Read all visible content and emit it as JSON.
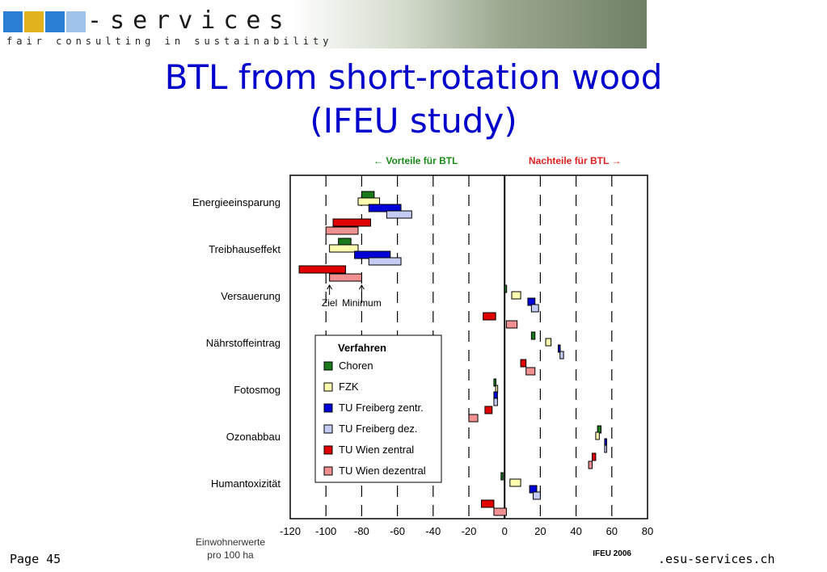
{
  "header": {
    "logo_text": "-services",
    "logo_tagline": "fair consulting in sustainability",
    "logo_colors": [
      "#2a7fd4",
      "#e2b21c",
      "#2a7fd4",
      "#9fc3e8"
    ]
  },
  "slide": {
    "title_line1": "BTL from short-rotation wood",
    "title_line2": "(IFEU study)"
  },
  "footer": {
    "page_label": "Page 45",
    "site": ".esu-services.ch"
  },
  "chart_data": {
    "type": "bar",
    "orientation": "horizontal-floating",
    "top_left_label": "←  Vorteile für BTL",
    "top_right_label": "Nachteile für BTL  →",
    "top_left_color": "#1a8a1a",
    "top_right_color": "#e02020",
    "xlabel": "Einwohnerwerte pro 100 ha",
    "xlabel_line1": "Einwohnerwerte",
    "xlabel_line2": "pro 100 ha",
    "source": "IFEU 2006",
    "xlim": [
      -120,
      80
    ],
    "xticks": [
      -120,
      -100,
      -80,
      -60,
      -40,
      -20,
      0,
      20,
      40,
      60,
      80
    ],
    "grid": "dashed vertical",
    "categories": [
      "Energieeinsparung",
      "Treibhauseffekt",
      "Versauerung",
      "Nährstoffeintrag",
      "Fotosmog",
      "Ozonabbau",
      "Humantoxizität"
    ],
    "annotations": [
      {
        "text": "Ziel",
        "x": -98,
        "category": "Treibhauseffekt"
      },
      {
        "text": "Minimum",
        "x": -80,
        "category": "Treibhauseffekt"
      }
    ],
    "legend": {
      "title": "Verfahren",
      "placement": "center-left"
    },
    "series": [
      {
        "name": "Choren",
        "color": "#1a7a1a",
        "ranges": [
          [
            -80,
            -73
          ],
          [
            -93,
            -86
          ],
          [
            0,
            1
          ],
          [
            15,
            17
          ],
          [
            -6,
            -5
          ],
          [
            52,
            54
          ],
          [
            -2,
            -1
          ]
        ]
      },
      {
        "name": "FZK",
        "color": "#ffffb0",
        "ranges": [
          [
            -82,
            -70
          ],
          [
            -98,
            -82
          ],
          [
            4,
            9
          ],
          [
            23,
            26
          ],
          [
            -5,
            -4
          ],
          [
            51,
            53
          ],
          [
            3,
            9
          ]
        ]
      },
      {
        "name": "TU Freiberg zentr.",
        "color": "#0000d8",
        "ranges": [
          [
            -76,
            -58
          ],
          [
            -84,
            -64
          ],
          [
            13,
            17
          ],
          [
            30,
            31
          ],
          [
            -6,
            -4
          ],
          [
            56,
            57
          ],
          [
            14,
            18
          ]
        ]
      },
      {
        "name": "TU Freiberg dez.",
        "color": "#c4ccf4",
        "ranges": [
          [
            -66,
            -52
          ],
          [
            -76,
            -58
          ],
          [
            15,
            19
          ],
          [
            31,
            33
          ],
          [
            -6,
            -4
          ],
          [
            56,
            57
          ],
          [
            16,
            20
          ]
        ]
      },
      {
        "name": "TU Wien zentral",
        "color": "#e00000",
        "ranges": [
          [
            -96,
            -75
          ],
          [
            -115,
            -89
          ],
          [
            -12,
            -5
          ],
          [
            9,
            12
          ],
          [
            -11,
            -7
          ],
          [
            49,
            51
          ],
          [
            -13,
            -6
          ]
        ]
      },
      {
        "name": "TU Wien dezentral",
        "color": "#f09090",
        "ranges": [
          [
            -100,
            -82
          ],
          [
            -98,
            -80
          ],
          [
            1,
            7
          ],
          [
            12,
            17
          ],
          [
            -20,
            -15
          ],
          [
            47,
            49
          ],
          [
            -6,
            1
          ]
        ]
      }
    ]
  }
}
